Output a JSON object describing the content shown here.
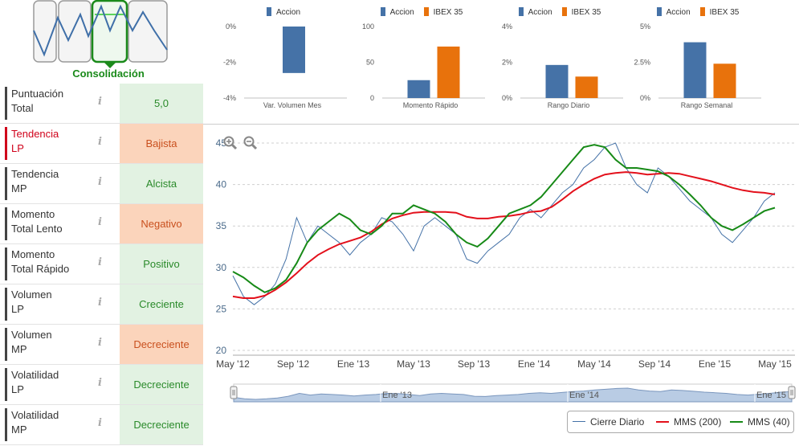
{
  "consolidation": {
    "label": "Consolidación",
    "icon": "trend-phase-icon",
    "active_phase": 2
  },
  "indicators": [
    {
      "label": "Puntuación\nTotal",
      "value": "5,0",
      "status": "good",
      "alert": false
    },
    {
      "label": "Tendencia\nLP",
      "value": "Bajista",
      "status": "bad",
      "alert": true
    },
    {
      "label": "Tendencia\nMP",
      "value": "Alcista",
      "status": "good",
      "alert": false
    },
    {
      "label": "Momento\nTotal Lento",
      "value": "Negativo",
      "status": "bad",
      "alert": false
    },
    {
      "label": "Momento\nTotal Rápido",
      "value": "Positivo",
      "status": "good",
      "alert": false
    },
    {
      "label": "Volumen\nLP",
      "value": "Creciente",
      "status": "good",
      "alert": false
    },
    {
      "label": "Volumen\nMP",
      "value": "Decreciente",
      "status": "bad",
      "alert": false
    },
    {
      "label": "Volatilidad\nLP",
      "value": "Decreciente",
      "status": "good",
      "alert": false
    },
    {
      "label": "Volatilidad\nMP",
      "value": "Decreciente",
      "status": "good",
      "alert": false
    }
  ],
  "info_icon": "i",
  "colors": {
    "accion": "#4572a7",
    "ibex": "#e8720c",
    "cierre": "#4572a7",
    "mms200": "#e3101b",
    "mms40": "#178a17"
  },
  "chart_data": [
    {
      "type": "bar",
      "category": "Var. Volumen Mes",
      "series": [
        {
          "name": "Accion",
          "values": [
            -2.6
          ]
        }
      ],
      "yticks": [
        "0%",
        "-2%",
        "-4%"
      ],
      "ylim": [
        -4,
        0
      ]
    },
    {
      "type": "bar",
      "category": "Momento Rápido",
      "series": [
        {
          "name": "Accion",
          "values": [
            25
          ]
        },
        {
          "name": "IBEX 35",
          "values": [
            72
          ]
        }
      ],
      "yticks": [
        "100",
        "50",
        "0"
      ],
      "ylim": [
        0,
        100
      ]
    },
    {
      "type": "bar",
      "category": "Rango Diario",
      "series": [
        {
          "name": "Accion",
          "values": [
            1.85
          ]
        },
        {
          "name": "IBEX 35",
          "values": [
            1.2
          ]
        }
      ],
      "yticks": [
        "4%",
        "2%",
        "0%"
      ],
      "ylim": [
        0,
        4
      ]
    },
    {
      "type": "bar",
      "category": "Rango Semanal",
      "series": [
        {
          "name": "Accion",
          "values": [
            3.9
          ]
        },
        {
          "name": "IBEX 35",
          "values": [
            2.4
          ]
        }
      ],
      "yticks": [
        "5%",
        "2.5%",
        "0%"
      ],
      "ylim": [
        0,
        5
      ]
    },
    {
      "type": "line",
      "xticks": [
        "May '12",
        "Sep '12",
        "Ene '13",
        "May '13",
        "Sep '13",
        "Ene '14",
        "May '14",
        "Sep '14",
        "Ene '15",
        "May '15"
      ],
      "yticks": [
        "45",
        "40",
        "35",
        "30",
        "25",
        "20"
      ],
      "ylim": [
        20,
        45
      ],
      "navigator_labels": [
        "Ene '13",
        "Ene '14",
        "Ene '15"
      ],
      "series": [
        {
          "name": "Cierre Diario",
          "values": [
            29,
            26.5,
            25.5,
            26.5,
            28,
            31,
            36,
            33,
            35,
            34,
            33,
            31.5,
            33,
            34,
            36,
            35.5,
            34,
            32,
            35,
            36,
            35,
            34,
            31,
            30.5,
            32,
            33,
            34,
            36,
            37,
            36,
            37.5,
            39,
            40,
            42,
            43,
            44.5,
            45,
            42,
            40,
            39,
            42,
            41,
            39.5,
            38,
            37,
            36,
            34,
            33,
            34.5,
            36,
            38,
            39
          ]
        },
        {
          "name": "MMS (200)",
          "values": [
            26.5,
            26.3,
            26.3,
            26.6,
            27.3,
            28.2,
            29.3,
            30.5,
            31.5,
            32.2,
            32.8,
            33.2,
            33.6,
            34.3,
            35.2,
            35.9,
            36.3,
            36.6,
            36.7,
            36.7,
            36.7,
            36.6,
            36.1,
            35.9,
            35.9,
            36.1,
            36.2,
            36.4,
            36.7,
            36.8,
            37.3,
            38.2,
            39.2,
            40,
            40.7,
            41.2,
            41.4,
            41.5,
            41.4,
            41.2,
            41.3,
            41.4,
            41.3,
            41,
            40.7,
            40.4,
            40,
            39.6,
            39.3,
            39.1,
            39,
            38.8
          ]
        },
        {
          "name": "MMS (40)",
          "values": [
            29.5,
            28.8,
            27.8,
            27,
            27.5,
            28.5,
            30.5,
            33,
            34.5,
            35.5,
            36.5,
            35.8,
            34.5,
            34,
            35,
            36.5,
            36.5,
            37.5,
            37,
            36.5,
            35.5,
            34,
            33,
            32.5,
            33.5,
            35,
            36.5,
            37,
            37.5,
            38.5,
            40,
            41.5,
            43,
            44.5,
            44.8,
            44.5,
            43,
            42,
            42,
            41.8,
            41.6,
            41,
            40,
            38.8,
            37.5,
            36,
            35,
            34.5,
            35.2,
            36,
            36.8,
            37.2
          ]
        }
      ]
    }
  ]
}
